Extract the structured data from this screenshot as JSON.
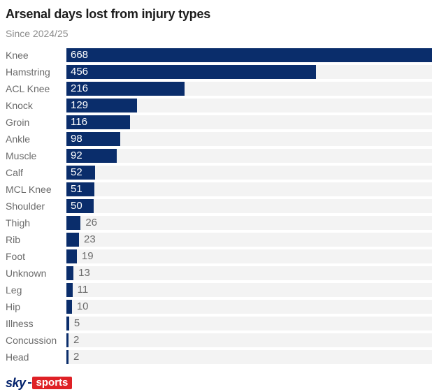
{
  "header": {
    "title": "Arsenal days lost from injury types",
    "subtitle": "Since 2024/25"
  },
  "chart_data": {
    "type": "bar",
    "orientation": "horizontal",
    "title": "Arsenal days lost from injury types",
    "subtitle": "Since 2024/25",
    "categories": [
      "Knee",
      "Hamstring",
      "ACL Knee",
      "Knock",
      "Groin",
      "Ankle",
      "Muscle",
      "Calf",
      "MCL Knee",
      "Shoulder",
      "Thigh",
      "Rib",
      "Foot",
      "Unknown",
      "Leg",
      "Hip",
      "Illness",
      "Concussion",
      "Head"
    ],
    "values": [
      668,
      456,
      216,
      129,
      116,
      98,
      92,
      52,
      51,
      50,
      26,
      23,
      19,
      13,
      11,
      10,
      5,
      2,
      2
    ],
    "xlabel": "",
    "ylabel": "",
    "xlim": [
      0,
      668
    ],
    "grid": false,
    "legend": false,
    "value_label_placement": "inside bar in white when bar is wide, outside right in gray when narrow"
  },
  "footer": {
    "logo_sky": "sky",
    "logo_sports": "sports"
  },
  "colors": {
    "bar": "#0a2d6b",
    "track": "#f3f3f3",
    "label_text": "#6b6b6b",
    "value_inside_text": "#ffffff",
    "value_outside_text": "#6b6b6b",
    "title_text": "#1b1b1b",
    "subtitle_text": "#8c8c8c",
    "logo_sky_navy": "#02216c",
    "logo_sports_red": "#df2126",
    "background": "#ffffff"
  }
}
